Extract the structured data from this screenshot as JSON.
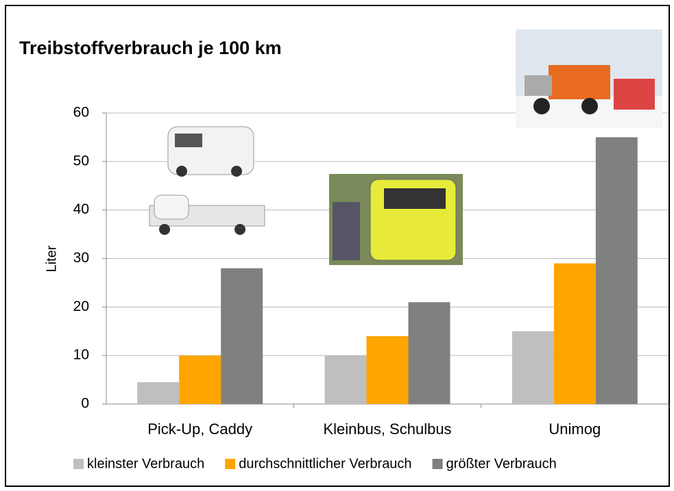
{
  "chart_data": {
    "type": "bar",
    "title": "Treibstoffverbrauch je 100 km",
    "y_label": "Liter",
    "categories": [
      "Pick-Up, Caddy",
      "Kleinbus, Schulbus",
      "Unimog"
    ],
    "series": [
      {
        "name": "kleinster Verbrauch",
        "color": "#bfbfbf",
        "values": [
          4.5,
          10,
          15
        ]
      },
      {
        "name": "durchschnittlicher Verbrauch",
        "color": "#ffa500",
        "values": [
          10,
          14,
          29
        ]
      },
      {
        "name": "größter Verbrauch",
        "color": "#808080",
        "values": [
          28,
          21,
          55
        ]
      }
    ],
    "ylim": [
      0,
      60
    ],
    "yticks": [
      0,
      10,
      20,
      30,
      40,
      50,
      60
    ],
    "grid": true,
    "legend": "bottom"
  }
}
